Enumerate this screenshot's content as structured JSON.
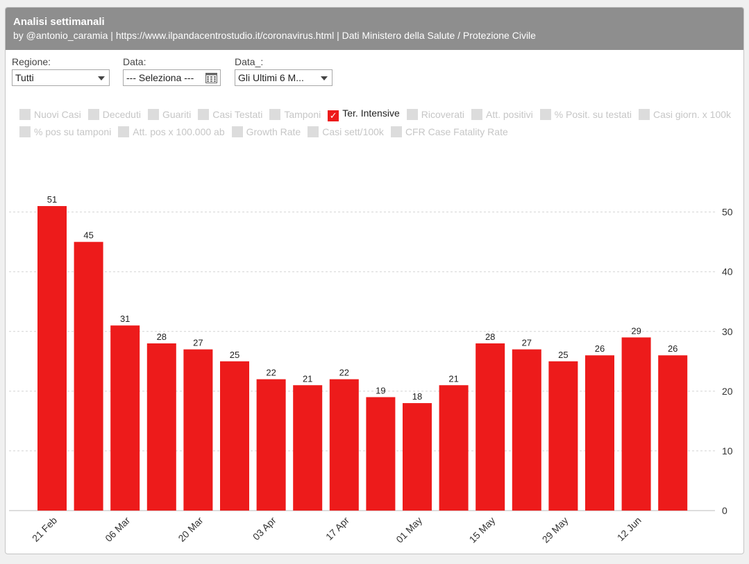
{
  "header": {
    "title": "Analisi settimanali",
    "subtitle": "by @antonio_caramia | https://www.ilpandacentrostudio.it/coronavirus.html | Dati Ministero della Salute / Protezione Civile"
  },
  "filters": {
    "regione": {
      "label": "Regione:",
      "value": "Tutti"
    },
    "data": {
      "label": "Data:",
      "value": "--- Seleziona ---"
    },
    "data2": {
      "label": "Data_:",
      "value": "Gli Ultimi 6 M..."
    }
  },
  "legend": {
    "row1": [
      "Nuovi Casi",
      "Deceduti",
      "Guariti",
      "Casi Testati",
      "Tamponi",
      "Ter. Intensive",
      "Ricoverati",
      "Att. positivi",
      "% Posit. su testati",
      "Casi giorn. x 100k"
    ],
    "row2": [
      "% pos su tamponi",
      "Att. pos x 100.000 ab",
      "Growth Rate",
      "Casi sett/100k",
      "CFR Case Fatality Rate"
    ],
    "active": "Ter. Intensive",
    "check_glyph": "✓"
  },
  "colors": {
    "bar": "#ed1b1b",
    "header": "#8e8e8e"
  },
  "chart_data": {
    "type": "bar",
    "series_name": "Ter. Intensive",
    "values": [
      51,
      45,
      31,
      28,
      27,
      25,
      22,
      21,
      22,
      19,
      18,
      21,
      28,
      27,
      25,
      26,
      29,
      26
    ],
    "tick_labels": [
      "21 Feb",
      "06 Mar",
      "20 Mar",
      "03 Apr",
      "17 Apr",
      "01 May",
      "15 May",
      "29 May",
      "12 Jun"
    ],
    "tick_bar_index": [
      0,
      2,
      4,
      6,
      8,
      10,
      12,
      14,
      16
    ],
    "y_ticks": [
      0,
      10,
      20,
      30,
      40,
      50
    ],
    "ylim": [
      0,
      56
    ],
    "y_axis_side": "right",
    "grid": true,
    "data_labels": true
  }
}
